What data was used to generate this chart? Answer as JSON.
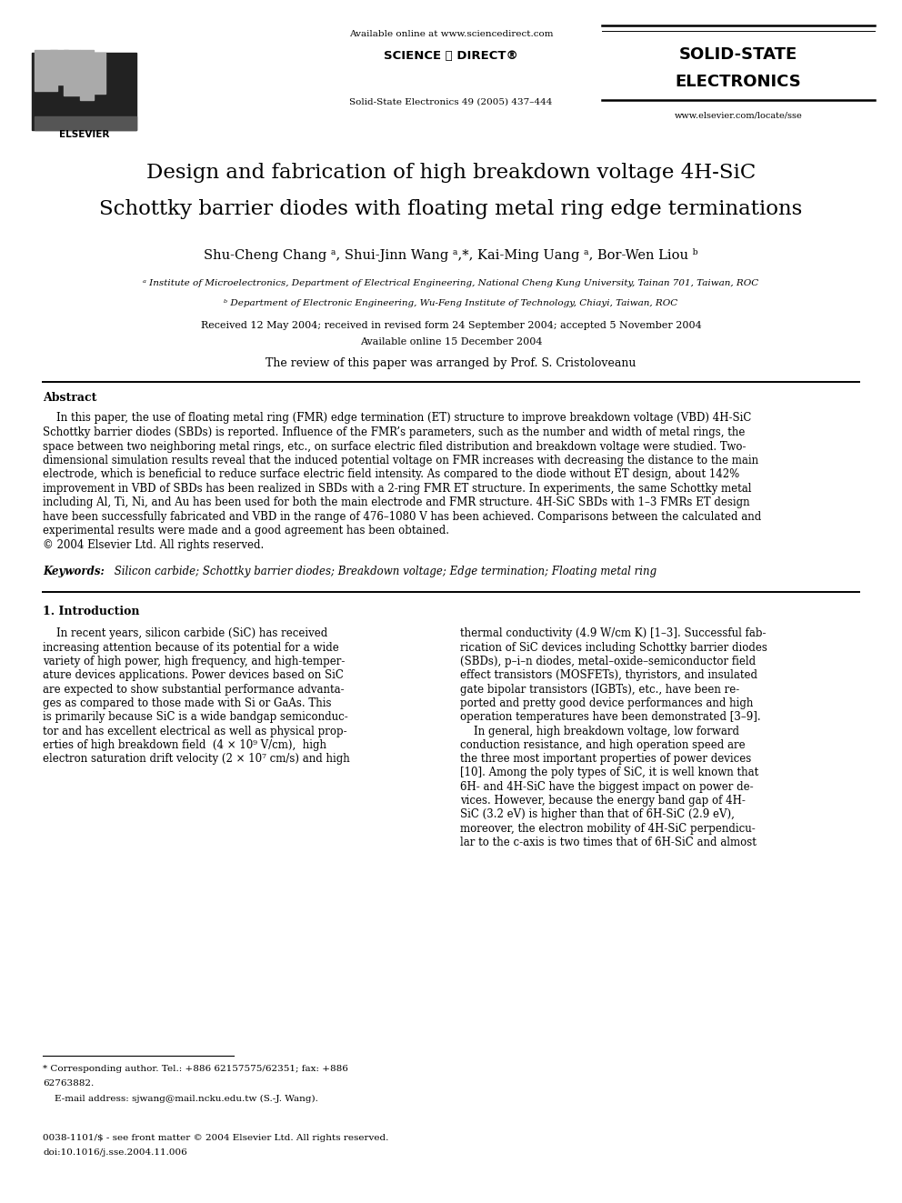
{
  "page_width": 9.92,
  "page_height": 13.23,
  "dpi": 100,
  "bg": "#ffffff",
  "header_avail": "Available online at www.sciencedirect.com",
  "header_sd": "SCIENCE ⓓ DIRECT®",
  "header_journal_ref": "Solid-State Electronics 49 (2005) 437–444",
  "journal_name1": "SOLID-STATE",
  "journal_name2": "ELECTRONICS",
  "journal_url": "www.elsevier.com/locate/sse",
  "title_line1": "Design and fabrication of high breakdown voltage 4H-SiC",
  "title_line2": "Schottky barrier diodes with floating metal ring edge terminations",
  "authors": "Shu-Cheng Chang ᵃ, Shui-Jinn Wang ᵃ,*, Kai-Ming Uang ᵃ, Bor-Wen Liou ᵇ",
  "affil_a": "ᵃ Institute of Microelectronics, Department of Electrical Engineering, National Cheng Kung University, Tainan 701, Taiwan, ROC",
  "affil_b": "ᵇ Department of Electronic Engineering, Wu-Feng Institute of Technology, Chiayi, Taiwan, ROC",
  "received": "Received 12 May 2004; received in revised form 24 September 2004; accepted 5 November 2004",
  "avail_online": "Available online 15 December 2004",
  "review_note": "The review of this paper was arranged by Prof. S. Cristoloveanu",
  "abs_head": "Abstract",
  "abstract_lines": [
    "    In this paper, the use of floating metal ring (FMR) edge termination (ET) structure to improve breakdown voltage (VBD) 4H-SiC",
    "Schottky barrier diodes (SBDs) is reported. Influence of the FMR’s parameters, such as the number and width of metal rings, the",
    "space between two neighboring metal rings, etc., on surface electric filed distribution and breakdown voltage were studied. Two-",
    "dimensional simulation results reveal that the induced potential voltage on FMR increases with decreasing the distance to the main",
    "electrode, which is beneficial to reduce surface electric field intensity. As compared to the diode without ET design, about 142%",
    "improvement in VBD of SBDs has been realized in SBDs with a 2-ring FMR ET structure. In experiments, the same Schottky metal",
    "including Al, Ti, Ni, and Au has been used for both the main electrode and FMR structure. 4H-SiC SBDs with 1–3 FMRs ET design",
    "have been successfully fabricated and VBD in the range of 476–1080 V has been achieved. Comparisons between the calculated and",
    "experimental results were made and a good agreement has been obtained.",
    "© 2004 Elsevier Ltd. All rights reserved."
  ],
  "kw_label": "Keywords:",
  "kw_text": " Silicon carbide; Schottky barrier diodes; Breakdown voltage; Edge termination; Floating metal ring",
  "sec1_head": "1. Introduction",
  "col1_lines": [
    "    In recent years, silicon carbide (SiC) has received",
    "increasing attention because of its potential for a wide",
    "variety of high power, high frequency, and high-temper-",
    "ature devices applications. Power devices based on SiC",
    "are expected to show substantial performance advanta-",
    "ges as compared to those made with Si or GaAs. This",
    "is primarily because SiC is a wide bandgap semiconduc-",
    "tor and has excellent electrical as well as physical prop-",
    "erties of high breakdown field  (4 × 10⁹ V/cm),  high",
    "electron saturation drift velocity (2 × 10⁷ cm/s) and high"
  ],
  "col2_lines": [
    "thermal conductivity (4.9 W/cm K) [1–3]. Successful fab-",
    "rication of SiC devices including Schottky barrier diodes",
    "(SBDs), p–i–n diodes, metal–oxide–semiconductor field",
    "effect transistors (MOSFETs), thyristors, and insulated",
    "gate bipolar transistors (IGBTs), etc., have been re-",
    "ported and pretty good device performances and high",
    "operation temperatures have been demonstrated [3–9].",
    "    In general, high breakdown voltage, low forward",
    "conduction resistance, and high operation speed are",
    "the three most important properties of power devices",
    "[10]. Among the poly types of SiC, it is well known that",
    "6H- and 4H-SiC have the biggest impact on power de-",
    "vices. However, because the energy band gap of 4H-",
    "SiC (3.2 eV) is higher than that of 6H-SiC (2.9 eV),",
    "moreover, the electron mobility of 4H-SiC perpendicu-",
    "lar to the c-axis is two times that of 6H-SiC and almost"
  ],
  "foot_line1": "* Corresponding author. Tel.: +886 62157575/62351; fax: +886",
  "foot_line2": "62763882.",
  "foot_line3": "    E-mail address: sjwang@mail.ncku.edu.tw (S.-J. Wang).",
  "foot_issn": "0038-1101/$ - see front matter © 2004 Elsevier Ltd. All rights reserved.",
  "foot_doi": "doi:10.1016/j.sse.2004.11.006"
}
